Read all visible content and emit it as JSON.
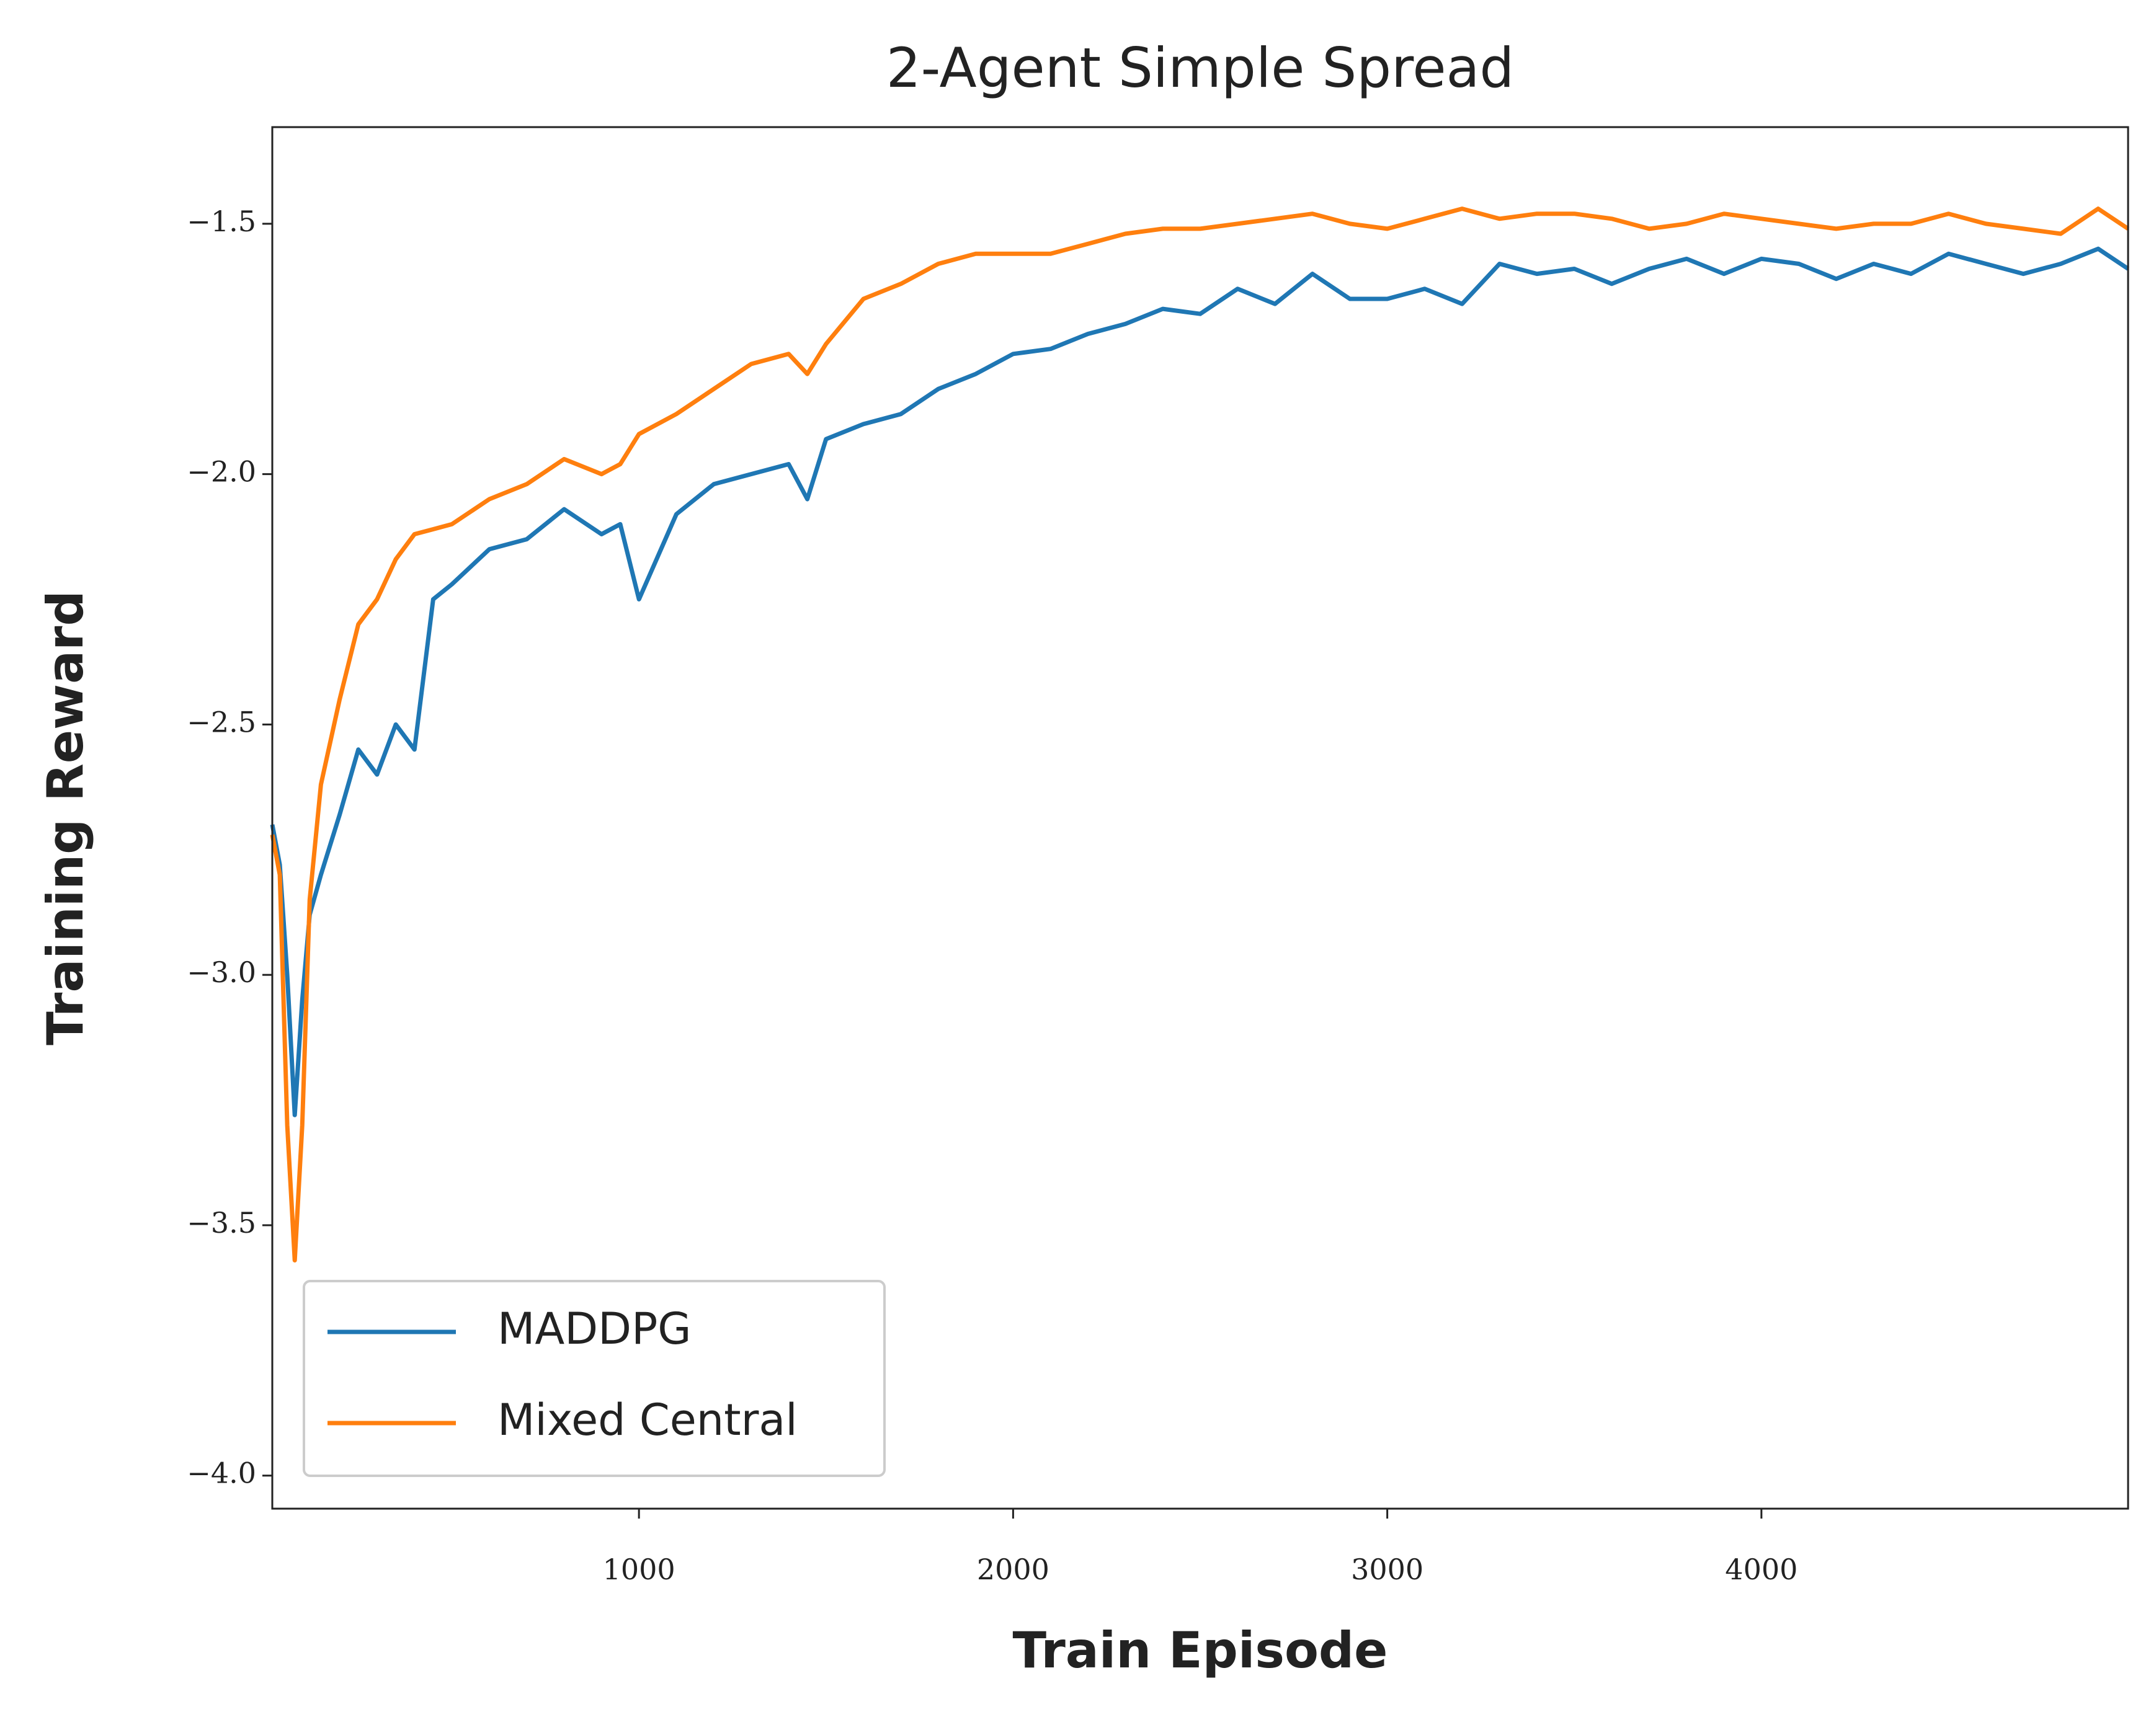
{
  "chart_data": {
    "type": "line",
    "title": "2-Agent Simple Spread",
    "x_label": "Train Episode",
    "y_label": "Training Reward",
    "x": [
      20,
      40,
      60,
      80,
      100,
      120,
      150,
      200,
      250,
      300,
      350,
      400,
      450,
      500,
      600,
      700,
      800,
      900,
      950,
      1000,
      1100,
      1200,
      1300,
      1400,
      1450,
      1500,
      1600,
      1700,
      1800,
      1900,
      2000,
      2100,
      2200,
      2300,
      2400,
      2500,
      2600,
      2700,
      2800,
      2900,
      3000,
      3100,
      3200,
      3300,
      3400,
      3500,
      3600,
      3700,
      3800,
      3900,
      4000,
      4100,
      4200,
      4300,
      4400,
      4500,
      4600,
      4700,
      4800,
      4900,
      4980
    ],
    "series": [
      {
        "name": "MADDPG",
        "color": "#1f77b4",
        "values": [
          -2.7,
          -2.78,
          -3.0,
          -3.28,
          -3.05,
          -2.88,
          -2.8,
          -2.68,
          -2.55,
          -2.6,
          -2.5,
          -2.55,
          -2.25,
          -2.22,
          -2.15,
          -2.13,
          -2.07,
          -2.12,
          -2.1,
          -2.25,
          -2.08,
          -2.02,
          -2.0,
          -1.98,
          -2.05,
          -1.93,
          -1.9,
          -1.88,
          -1.83,
          -1.8,
          -1.76,
          -1.75,
          -1.72,
          -1.7,
          -1.67,
          -1.68,
          -1.63,
          -1.66,
          -1.6,
          -1.65,
          -1.65,
          -1.63,
          -1.66,
          -1.58,
          -1.6,
          -1.59,
          -1.62,
          -1.59,
          -1.57,
          -1.6,
          -1.57,
          -1.58,
          -1.61,
          -1.58,
          -1.6,
          -1.56,
          -1.58,
          -1.6,
          -1.58,
          -1.55,
          -1.59
        ]
      },
      {
        "name": "Mixed Central",
        "color": "#ff7f0e",
        "values": [
          -2.72,
          -2.8,
          -3.3,
          -3.57,
          -3.3,
          -2.85,
          -2.62,
          -2.45,
          -2.3,
          -2.25,
          -2.17,
          -2.12,
          -2.11,
          -2.1,
          -2.05,
          -2.02,
          -1.97,
          -2.0,
          -1.98,
          -1.92,
          -1.88,
          -1.83,
          -1.78,
          -1.76,
          -1.8,
          -1.74,
          -1.65,
          -1.62,
          -1.58,
          -1.56,
          -1.56,
          -1.56,
          -1.54,
          -1.52,
          -1.51,
          -1.51,
          -1.5,
          -1.49,
          -1.48,
          -1.5,
          -1.51,
          -1.49,
          -1.47,
          -1.49,
          -1.48,
          -1.48,
          -1.49,
          -1.51,
          -1.5,
          -1.48,
          -1.49,
          -1.5,
          -1.51,
          -1.5,
          -1.5,
          -1.48,
          -1.5,
          -1.51,
          -1.52,
          -1.47,
          -1.51
        ]
      }
    ],
    "xlim": [
      20,
      4980
    ],
    "xticks": [
      1000,
      2000,
      3000,
      4000
    ],
    "ylim": [
      -4.066,
      -1.307
    ],
    "yticks": [
      {
        "value": -4.0,
        "label": "−4.0"
      },
      {
        "value": -3.5,
        "label": "−3.5"
      },
      {
        "value": -3.0,
        "label": "−3.0"
      },
      {
        "value": -2.5,
        "label": "−2.5"
      },
      {
        "value": -2.0,
        "label": "−2.0"
      },
      {
        "value": -1.5,
        "label": "−1.5"
      }
    ],
    "legend": "lower left",
    "grid": false
  }
}
